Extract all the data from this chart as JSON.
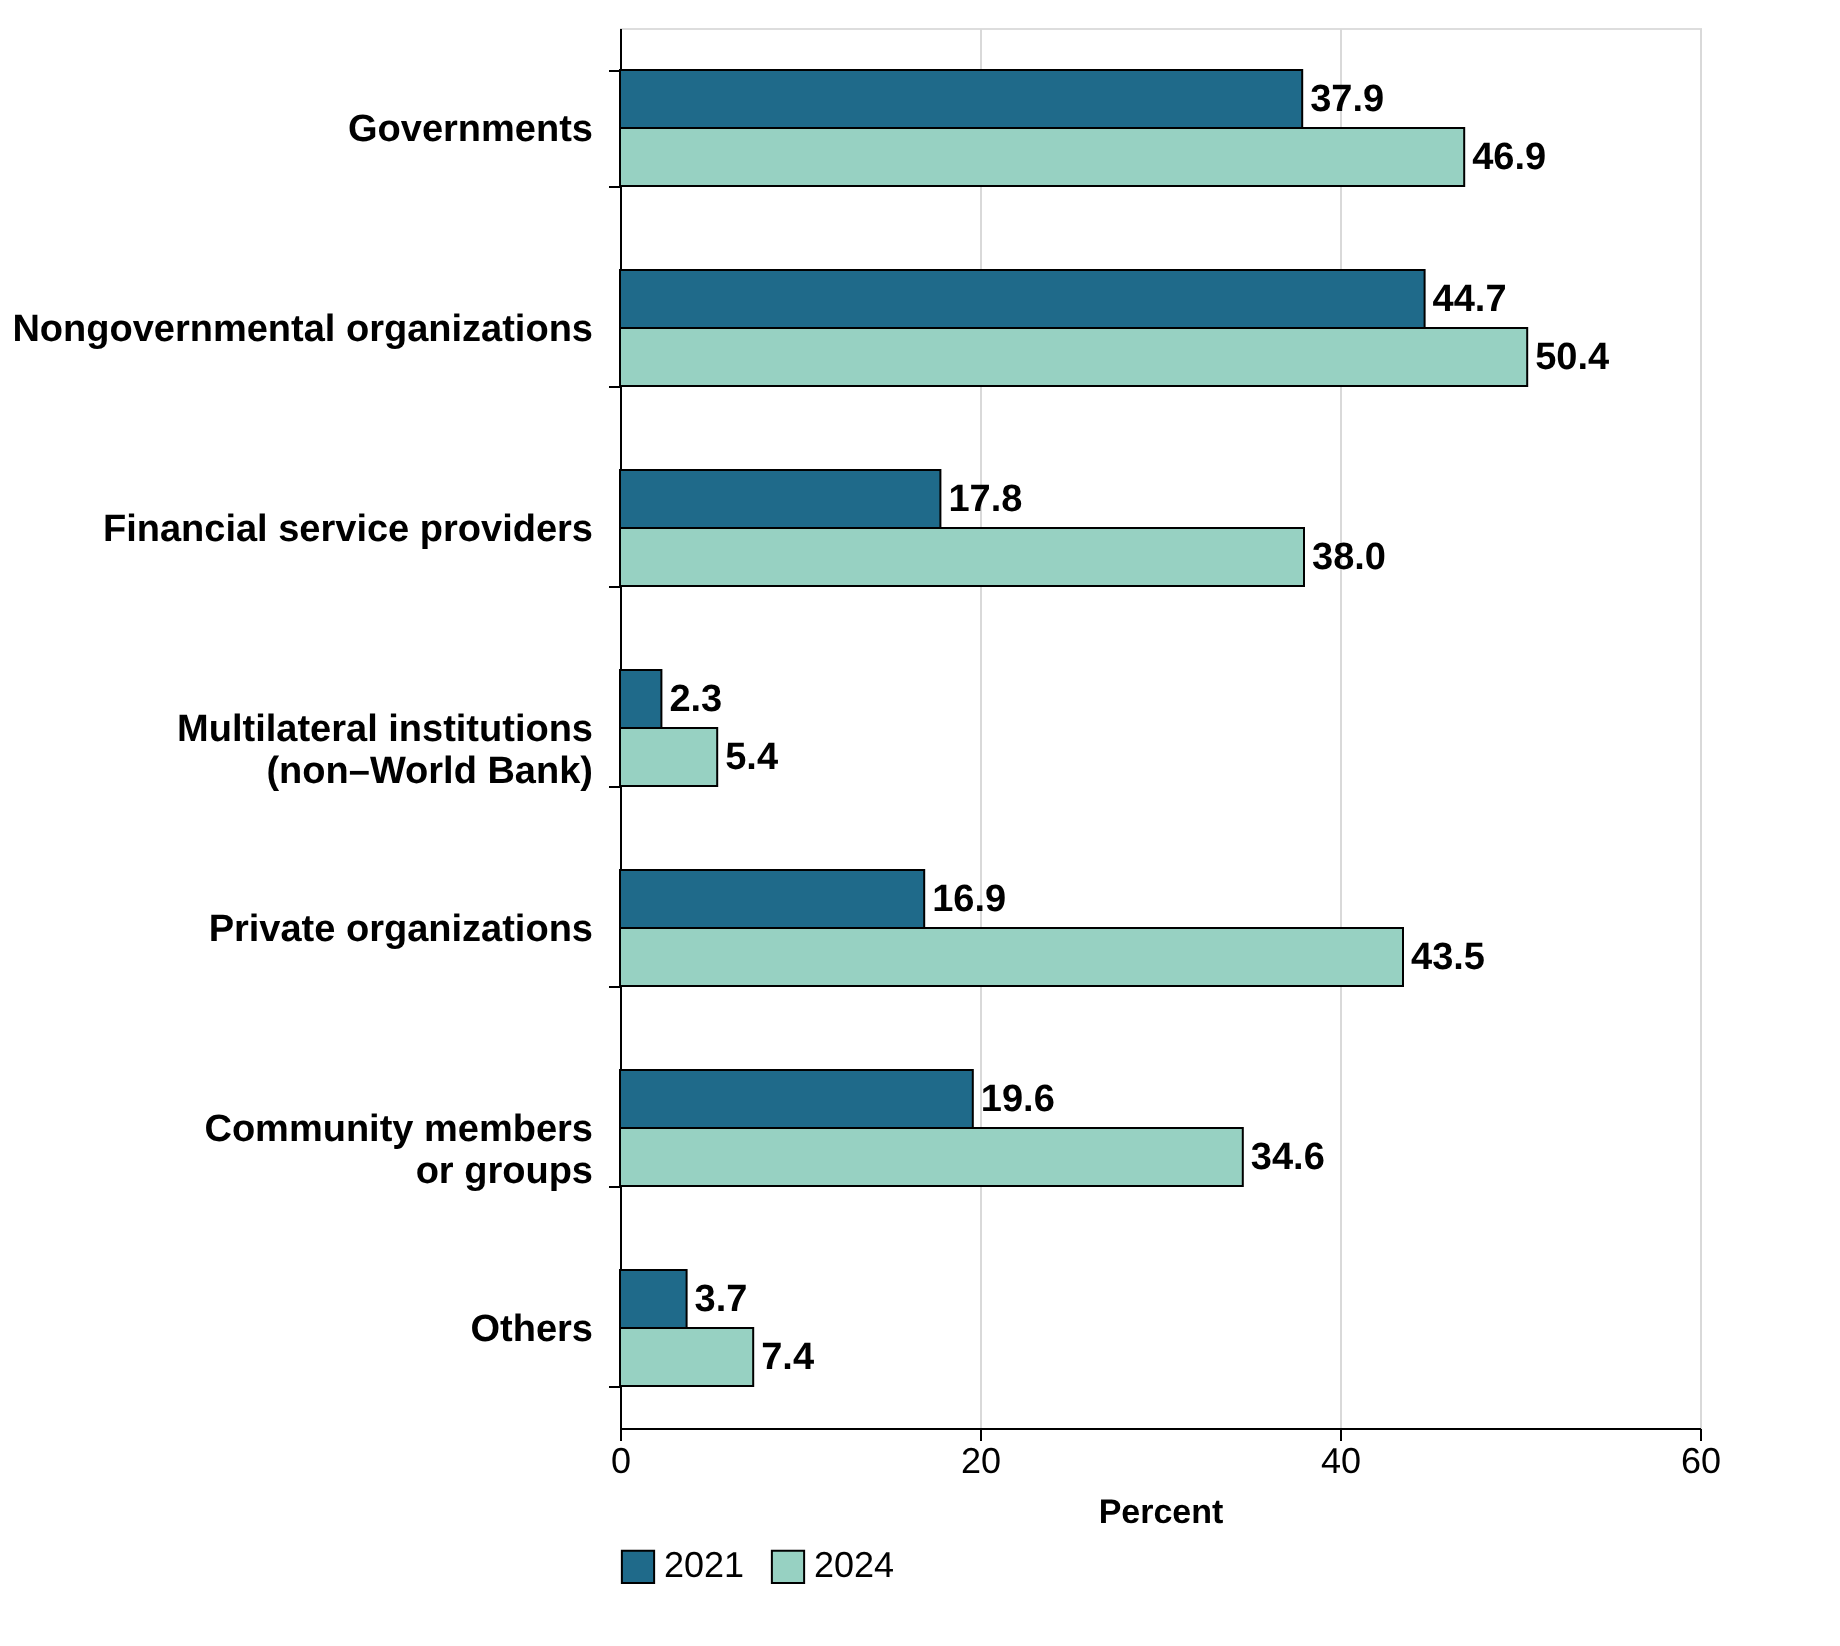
{
  "chart_data": {
    "type": "bar",
    "orientation": "horizontal",
    "categories": [
      "Governments",
      "Nongovernmental organizations",
      "Financial service providers",
      "Multilateral institutions\n(non–World Bank)",
      "Private organizations",
      "Community members\nor groups",
      "Others"
    ],
    "series": [
      {
        "name": "2021",
        "color": "#1f6a8a",
        "values": [
          37.9,
          44.7,
          17.8,
          2.3,
          16.9,
          19.6,
          3.7
        ],
        "value_labels": [
          "37.9",
          "44.7",
          "17.8",
          "2.3",
          "16.9",
          "19.6",
          "3.7"
        ]
      },
      {
        "name": "2024",
        "color": "#97d1c2",
        "values": [
          46.9,
          50.4,
          38.0,
          5.4,
          43.5,
          34.6,
          7.4
        ],
        "value_labels": [
          "46.9",
          "50.4",
          "38.0",
          "5.4",
          "43.5",
          "34.6",
          "7.4"
        ]
      }
    ],
    "xlabel": "Percent",
    "xlim": [
      0,
      60
    ],
    "xticks": [
      0,
      20,
      40,
      60
    ],
    "grid": "x",
    "legend": "bottom"
  }
}
